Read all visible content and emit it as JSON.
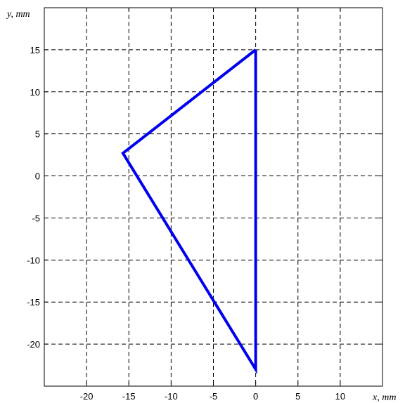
{
  "chart_data": {
    "type": "line",
    "title": "",
    "xlabel": "x, mm",
    "ylabel": "y, mm",
    "xlim": [
      -25,
      15
    ],
    "ylim": [
      -25,
      20
    ],
    "x_ticks": [
      -20,
      -15,
      -10,
      -5,
      0,
      5,
      10
    ],
    "y_ticks": [
      -20,
      -15,
      -10,
      -5,
      0,
      5,
      10,
      15
    ],
    "x_grid": [
      -20,
      -15,
      -10,
      -5,
      0,
      5,
      10,
      15
    ],
    "y_grid": [
      -20,
      -15,
      -10,
      -5,
      0,
      5,
      10,
      15
    ],
    "grid": true,
    "grid_style": "dashed",
    "series": [
      {
        "color": "#0000ee",
        "x": [
          0,
          -15.7,
          0,
          0
        ],
        "y": [
          15,
          2.7,
          -23,
          15
        ]
      }
    ]
  }
}
